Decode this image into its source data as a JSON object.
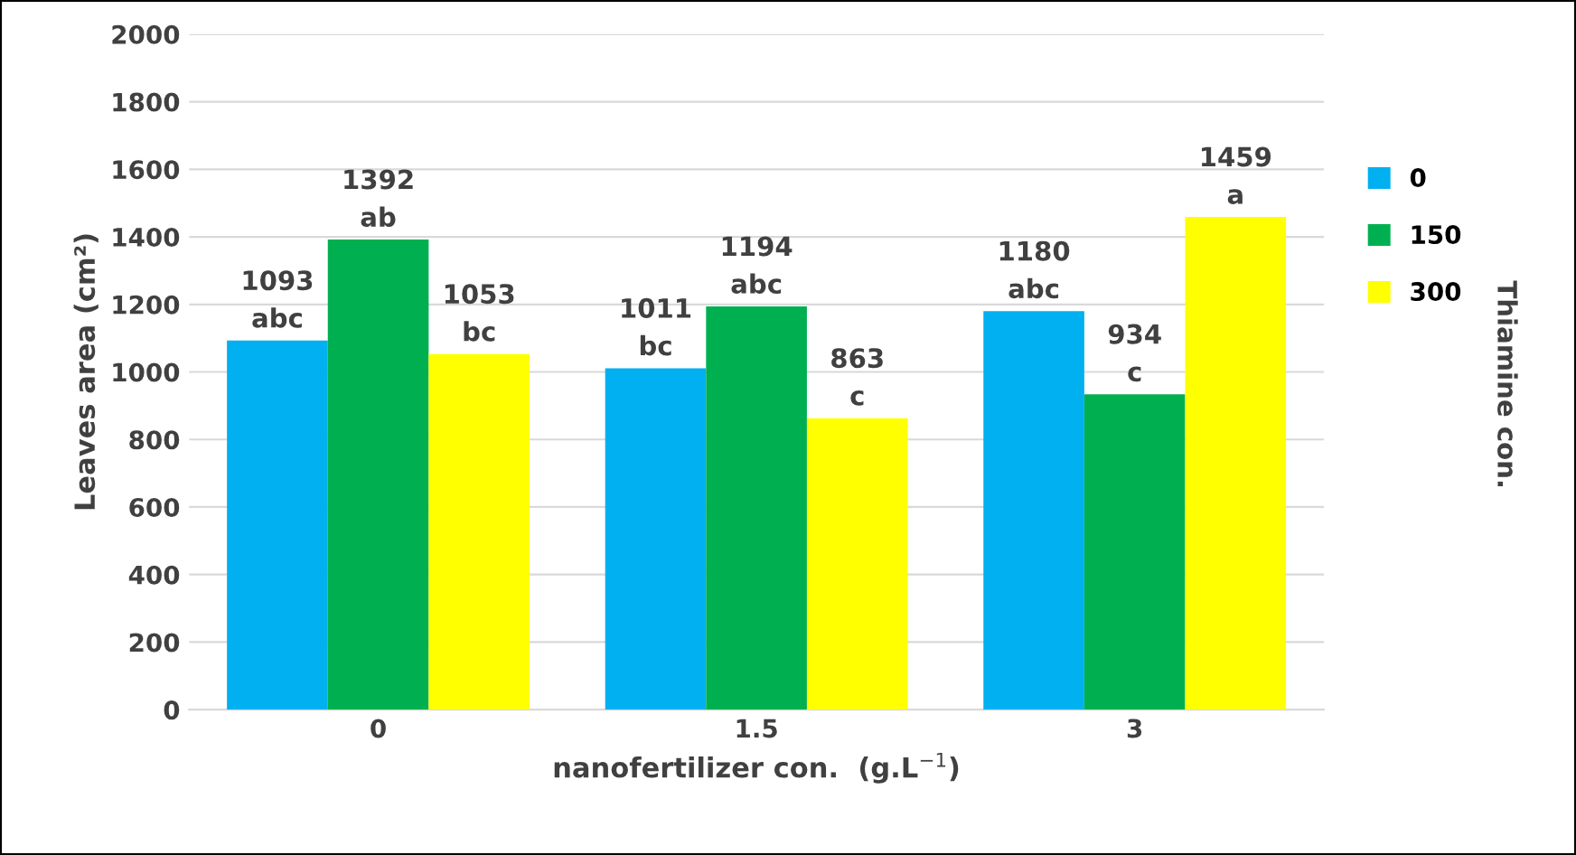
{
  "chart_data": {
    "type": "bar",
    "categories": [
      "0",
      "1.5",
      "3"
    ],
    "series": [
      {
        "name": "0",
        "color": "#00b0f0",
        "values": [
          1093,
          1011,
          1180
        ],
        "value_labels": [
          "1093\nabc",
          "1011\nbc",
          "1180\nabc"
        ]
      },
      {
        "name": "150",
        "color": "#00b050",
        "values": [
          1392,
          1194,
          934
        ],
        "value_labels": [
          "1392\nab",
          "1194\nabc",
          "934\nc"
        ]
      },
      {
        "name": "300",
        "color": "#ffff00",
        "values": [
          1053,
          863,
          1459
        ],
        "value_labels": [
          "1053\nbc",
          "863\nc",
          "1459\na"
        ]
      }
    ],
    "ylabel": "Leaves area (cm²)",
    "xlabel": "nanofertilizer con.  (g.L$^{−1}$)",
    "legend_title": "Thiamine con.",
    "ylim": [
      0,
      2000
    ],
    "yticks": [
      0,
      200,
      400,
      600,
      800,
      1000,
      1200,
      1400,
      1600,
      1800,
      2000
    ],
    "grid": "y",
    "legend": "right"
  }
}
